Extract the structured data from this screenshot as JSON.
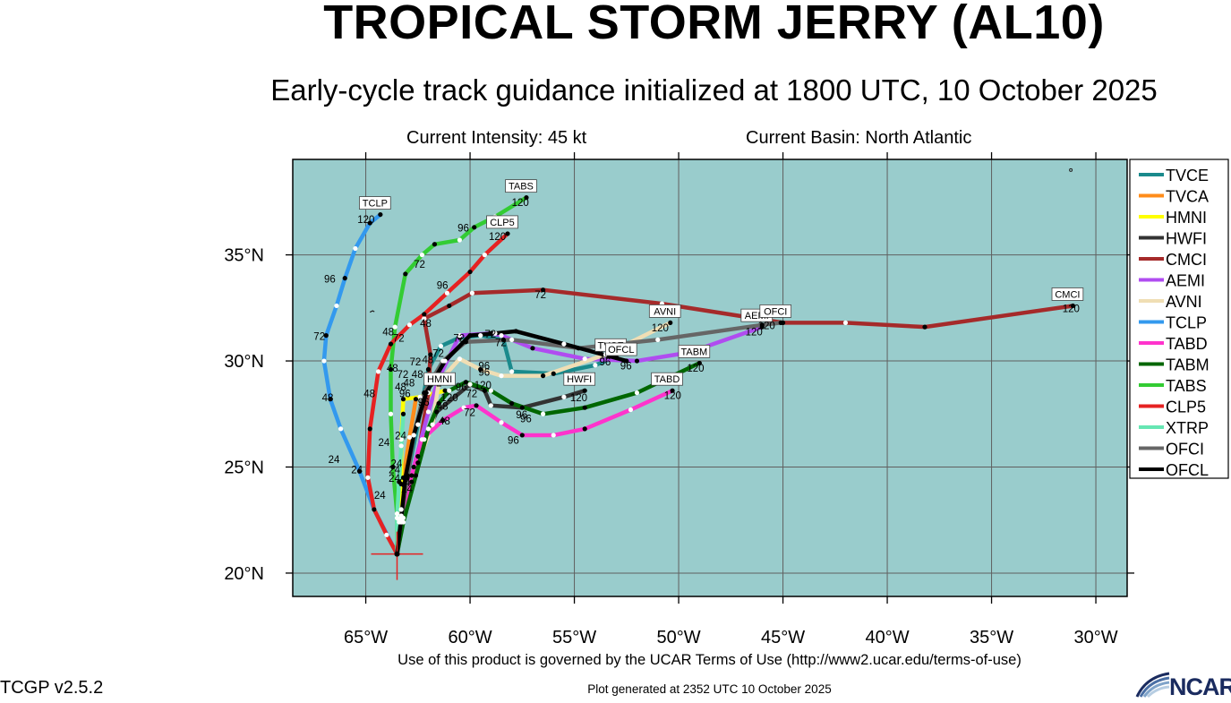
{
  "header": {
    "title": "TROPICAL STORM JERRY (AL10)",
    "subtitle": "Early-cycle track guidance initialized at 1800 UTC, 10 October 2025",
    "intensity_label": "Current Intensity: 45 kt",
    "basin_label": "Current Basin: North Atlantic"
  },
  "footer": {
    "terms": "Use of this product is governed by the UCAR Terms of Use (http://www2.ucar.edu/terms-of-use)",
    "version": "TCGP v2.5.2",
    "generated": "Plot generated at 2352 UTC   10 October 2025",
    "logo_text": "NCAR"
  },
  "chart_data": {
    "type": "map-track",
    "lon_range": [
      -68.5,
      -28.5
    ],
    "lat_range": [
      18.9,
      39.5
    ],
    "x_ticks": [
      {
        "value": -65,
        "label": "65°W"
      },
      {
        "value": -60,
        "label": "60°W"
      },
      {
        "value": -55,
        "label": "55°W"
      },
      {
        "value": -50,
        "label": "50°W"
      },
      {
        "value": -45,
        "label": "45°W"
      },
      {
        "value": -40,
        "label": "40°W"
      },
      {
        "value": -35,
        "label": "35°W"
      },
      {
        "value": -30,
        "label": "30°W"
      }
    ],
    "y_ticks": [
      {
        "value": 20,
        "label": "20°N"
      },
      {
        "value": 25,
        "label": "25°N"
      },
      {
        "value": 30,
        "label": "30°N"
      },
      {
        "value": 35,
        "label": "35°N"
      }
    ],
    "grid": true,
    "ocean_color": "#99cccc",
    "current_position": {
      "lon": -63.5,
      "lat": 20.9
    },
    "legend_position": "right",
    "series": [
      {
        "name": "TVCE",
        "color": "#1a8a8c",
        "points": [
          [
            -63.5,
            20.9
          ],
          [
            -63.3,
            22.7
          ],
          [
            -63.0,
            24.6
          ],
          [
            -62.5,
            27.0
          ],
          [
            -62.0,
            29.6
          ],
          [
            -61.4,
            30.7
          ],
          [
            -60.5,
            31.1
          ],
          [
            -59.5,
            31.2
          ],
          [
            -58.4,
            31.0
          ],
          [
            -58.0,
            29.5
          ],
          [
            -56.0,
            29.4
          ],
          [
            -54.0,
            29.8
          ],
          [
            -53.0,
            30.2
          ]
        ],
        "hour_labels": [],
        "end_label": "TVCE"
      },
      {
        "name": "TVCA",
        "color": "#ff8c1a",
        "points": [
          [
            -63.5,
            20.9
          ],
          [
            -63.4,
            22.5
          ],
          [
            -63.2,
            24.5
          ],
          [
            -62.9,
            26.4
          ],
          [
            -62.6,
            28.2
          ]
        ],
        "hour_labels": [],
        "end_label": null
      },
      {
        "name": "HMNI",
        "color": "#ffff00",
        "points": [
          [
            -63.5,
            20.9
          ],
          [
            -63.4,
            22.4
          ],
          [
            -63.3,
            24.2
          ],
          [
            -63.3,
            26.3
          ],
          [
            -63.2,
            28.2
          ],
          [
            -62.4,
            28.3
          ],
          [
            -61.2,
            28.6
          ]
        ],
        "hour_labels": [
          {
            "text": "24",
            "lon": -63.6,
            "lat": 26.3
          },
          {
            "text": "48",
            "lon": -63.6,
            "lat": 28.6
          },
          {
            "text": "96",
            "lon": -62.5,
            "lat": 27.9
          },
          {
            "text": "120",
            "lon": -61.4,
            "lat": 28.1
          }
        ],
        "end_label": "HMNI"
      },
      {
        "name": "HWFI",
        "color": "#333333",
        "points": [
          [
            -63.5,
            20.9
          ],
          [
            -63.3,
            22.4
          ],
          [
            -62.8,
            24.3
          ],
          [
            -62.2,
            26.3
          ],
          [
            -61.6,
            27.6
          ],
          [
            -60.0,
            28.9
          ],
          [
            -59.3,
            28.6
          ],
          [
            -59.0,
            27.9
          ],
          [
            -57.5,
            27.8
          ],
          [
            -55.5,
            28.3
          ],
          [
            -54.5,
            28.6
          ]
        ],
        "hour_labels": [
          {
            "text": "72",
            "lon": -60.2,
            "lat": 28.3
          },
          {
            "text": "96",
            "lon": -57.8,
            "lat": 27.3
          },
          {
            "text": "120",
            "lon": -55.2,
            "lat": 28.1
          }
        ],
        "end_label": "HWFI"
      },
      {
        "name": "CMCI",
        "color": "#a52a2a",
        "points": [
          [
            -63.5,
            20.9
          ],
          [
            -63.2,
            22.6
          ],
          [
            -62.5,
            25.5
          ],
          [
            -62.0,
            28.5
          ],
          [
            -61.9,
            30.3
          ],
          [
            -62.2,
            32.0
          ],
          [
            -61.0,
            32.6
          ],
          [
            -59.9,
            33.2
          ],
          [
            -56.5,
            33.35
          ],
          [
            -50.8,
            32.7
          ],
          [
            -45.0,
            31.8
          ],
          [
            -42.0,
            31.8
          ],
          [
            -38.2,
            31.6
          ],
          [
            -31.1,
            32.6
          ]
        ],
        "hour_labels": [
          {
            "text": "72",
            "lon": -56.9,
            "lat": 32.95
          },
          {
            "text": "120",
            "lon": -31.6,
            "lat": 32.3
          }
        ],
        "end_label": "CMCI"
      },
      {
        "name": "AEMI",
        "color": "#b04cf0",
        "points": [
          [
            -63.5,
            20.9
          ],
          [
            -63.3,
            22.6
          ],
          [
            -62.7,
            25.0
          ],
          [
            -62.0,
            27.6
          ],
          [
            -61.5,
            29.2
          ],
          [
            -60.5,
            31.2
          ],
          [
            -59.0,
            31.3
          ],
          [
            -58.5,
            31.2
          ],
          [
            -57.0,
            30.6
          ],
          [
            -54.5,
            30.1
          ],
          [
            -52.0,
            30.0
          ],
          [
            -49.5,
            30.4
          ],
          [
            -46.0,
            31.6
          ]
        ],
        "hour_labels": [
          {
            "text": "96",
            "lon": -52.8,
            "lat": 29.6
          },
          {
            "text": "120",
            "lon": -46.8,
            "lat": 31.2
          }
        ],
        "end_label": "AEMI"
      },
      {
        "name": "AVNI",
        "color": "#f0deb4",
        "points": [
          [
            -63.5,
            20.9
          ],
          [
            -63.3,
            23.0
          ],
          [
            -62.5,
            25.2
          ],
          [
            -61.8,
            27.0
          ],
          [
            -61.5,
            29.0
          ],
          [
            -60.5,
            30.1
          ],
          [
            -59.5,
            29.6
          ],
          [
            -58.5,
            29.3
          ],
          [
            -56.5,
            29.3
          ],
          [
            -53.5,
            30.3
          ],
          [
            -50.4,
            31.8
          ]
        ],
        "hour_labels": [
          {
            "text": "120",
            "lon": -51.3,
            "lat": 31.4
          }
        ],
        "end_label": "AVNI"
      },
      {
        "name": "TCLP",
        "color": "#3399ee",
        "points": [
          [
            -63.5,
            20.9
          ],
          [
            -64.6,
            23.0
          ],
          [
            -65.3,
            24.8
          ],
          [
            -66.2,
            26.8
          ],
          [
            -66.7,
            28.2
          ],
          [
            -67.0,
            30.0
          ],
          [
            -66.9,
            31.2
          ],
          [
            -66.4,
            32.6
          ],
          [
            -66.0,
            33.9
          ],
          [
            -65.5,
            35.3
          ],
          [
            -64.8,
            36.5
          ],
          [
            -64.3,
            36.9
          ]
        ],
        "hour_labels": [
          {
            "text": "24",
            "lon": -66.8,
            "lat": 25.2
          },
          {
            "text": "48",
            "lon": -67.1,
            "lat": 28.1
          },
          {
            "text": "72",
            "lon": -67.5,
            "lat": 31.0
          },
          {
            "text": "96",
            "lon": -67.0,
            "lat": 33.7
          },
          {
            "text": "120",
            "lon": -65.4,
            "lat": 36.5
          }
        ],
        "end_label": "TCLP"
      },
      {
        "name": "TABD",
        "color": "#ff33cc",
        "points": [
          [
            -63.5,
            20.9
          ],
          [
            -63.3,
            22.5
          ],
          [
            -62.8,
            24.6
          ],
          [
            -62.3,
            26.3
          ],
          [
            -61.3,
            27.2
          ],
          [
            -60.3,
            27.8
          ],
          [
            -59.7,
            27.9
          ],
          [
            -58.5,
            27.1
          ],
          [
            -57.5,
            26.5
          ],
          [
            -56.0,
            26.5
          ],
          [
            -54.5,
            26.8
          ],
          [
            -52.3,
            27.7
          ],
          [
            -50.3,
            28.6
          ]
        ],
        "hour_labels": [
          {
            "text": "48",
            "lon": -61.5,
            "lat": 27.0
          },
          {
            "text": "72",
            "lon": -60.3,
            "lat": 27.4
          },
          {
            "text": "96",
            "lon": -58.2,
            "lat": 26.1
          },
          {
            "text": "120",
            "lon": -50.7,
            "lat": 28.2
          }
        ],
        "end_label": "TABD"
      },
      {
        "name": "TABM",
        "color": "#006600",
        "points": [
          [
            -63.5,
            20.9
          ],
          [
            -63.2,
            22.4
          ],
          [
            -62.6,
            24.6
          ],
          [
            -62.0,
            26.8
          ],
          [
            -61.5,
            28.0
          ],
          [
            -61.0,
            28.6
          ],
          [
            -60.2,
            29.0
          ],
          [
            -59.0,
            28.6
          ],
          [
            -58.0,
            28.0
          ],
          [
            -56.5,
            27.5
          ],
          [
            -54.5,
            27.8
          ],
          [
            -52.0,
            28.5
          ],
          [
            -49.0,
            29.9
          ]
        ],
        "hour_labels": [
          {
            "text": "96",
            "lon": -57.6,
            "lat": 27.1
          },
          {
            "text": "120",
            "lon": -49.6,
            "lat": 29.5
          }
        ],
        "end_label": "TABM"
      },
      {
        "name": "TABS",
        "color": "#33cc33",
        "points": [
          [
            -63.5,
            20.9
          ],
          [
            -63.5,
            22.8
          ],
          [
            -63.7,
            25.0
          ],
          [
            -63.8,
            27.5
          ],
          [
            -63.8,
            29.6
          ],
          [
            -63.6,
            31.6
          ],
          [
            -63.1,
            34.1
          ],
          [
            -62.3,
            35.0
          ],
          [
            -61.7,
            35.5
          ],
          [
            -60.5,
            35.7
          ],
          [
            -59.8,
            36.3
          ],
          [
            -58.8,
            36.8
          ],
          [
            -57.3,
            37.7
          ]
        ],
        "hour_labels": [
          {
            "text": "24",
            "lon": -64.4,
            "lat": 26.0
          },
          {
            "text": "48",
            "lon": -64.0,
            "lat": 29.5
          },
          {
            "text": "72",
            "lon": -62.7,
            "lat": 34.4
          },
          {
            "text": "96",
            "lon": -60.6,
            "lat": 36.1
          },
          {
            "text": "120",
            "lon": -58.0,
            "lat": 37.3
          }
        ],
        "end_label": "TABS"
      },
      {
        "name": "CLP5",
        "color": "#e62222",
        "points": [
          [
            -63.5,
            20.9
          ],
          [
            -64.0,
            21.8
          ],
          [
            -64.6,
            23.0
          ],
          [
            -64.9,
            24.5
          ],
          [
            -64.8,
            26.8
          ],
          [
            -64.4,
            29.5
          ],
          [
            -63.8,
            30.8
          ],
          [
            -62.9,
            31.7
          ],
          [
            -62.2,
            32.2
          ],
          [
            -61.1,
            33.2
          ],
          [
            -60.0,
            34.2
          ],
          [
            -59.3,
            35.0
          ],
          [
            -58.2,
            36.0
          ]
        ],
        "hour_labels": [
          {
            "text": "24",
            "lon": -65.7,
            "lat": 24.7
          },
          {
            "text": "48",
            "lon": -65.1,
            "lat": 28.3
          },
          {
            "text": "48",
            "lon": -62.4,
            "lat": 31.6
          },
          {
            "text": "96",
            "lon": -61.6,
            "lat": 33.4
          },
          {
            "text": "120",
            "lon": -59.1,
            "lat": 35.7
          }
        ],
        "end_label": "CLP5"
      },
      {
        "name": "XTRP",
        "color": "#66e6b3",
        "points": [
          [
            -63.5,
            20.9
          ],
          [
            -63.5,
            22.6
          ],
          [
            -63.4,
            24.3
          ],
          [
            -63.3,
            26.0
          ],
          [
            -63.2,
            27.5
          ]
        ],
        "hour_labels": [],
        "end_label": null
      },
      {
        "name": "OFCI",
        "color": "#666666",
        "points": [
          [
            -63.5,
            20.9
          ],
          [
            -63.3,
            22.6
          ],
          [
            -63.0,
            24.5
          ],
          [
            -62.7,
            26.5
          ],
          [
            -62.2,
            28.5
          ],
          [
            -61.3,
            30.0
          ],
          [
            -60.2,
            30.9
          ],
          [
            -58.0,
            31.0
          ],
          [
            -54.8,
            30.6
          ],
          [
            -51.0,
            31.0
          ],
          [
            -46.0,
            31.7
          ],
          [
            -45.1,
            31.8
          ]
        ],
        "hour_labels": [
          {
            "text": "120",
            "lon": -46.2,
            "lat": 31.5
          }
        ],
        "end_label": "OFCI"
      },
      {
        "name": "OFCL",
        "color": "#000000",
        "points": [
          [
            -63.5,
            20.9
          ],
          [
            -63.3,
            22.6
          ],
          [
            -63.1,
            24.5
          ],
          [
            -62.7,
            26.5
          ],
          [
            -62.1,
            28.5
          ],
          [
            -61.2,
            30.0
          ],
          [
            -60.0,
            31.2
          ],
          [
            -58.8,
            31.3
          ],
          [
            -57.8,
            31.4
          ],
          [
            -55.5,
            30.8
          ],
          [
            -52.5,
            30.0
          ]
        ],
        "hour_labels": [
          {
            "text": "96",
            "lon": -53.8,
            "lat": 29.8
          },
          {
            "text": "120",
            "lon": -53.8,
            "lat": 30.1
          }
        ],
        "end_label": "OFCL"
      }
    ],
    "other_labels": [
      {
        "text": "24",
        "lon": -63.8,
        "lat": 25.0
      },
      {
        "text": "24",
        "lon": -63.9,
        "lat": 24.7
      },
      {
        "text": "24",
        "lon": -63.9,
        "lat": 24.3
      },
      {
        "text": "24",
        "lon": -64.6,
        "lat": 23.5
      },
      {
        "text": "24",
        "lon": -63.4,
        "lat": 24.1
      },
      {
        "text": "24",
        "lon": -63.3,
        "lat": 23.8
      },
      {
        "text": "48",
        "lon": -64.2,
        "lat": 31.2
      },
      {
        "text": "72",
        "lon": -63.7,
        "lat": 30.9
      },
      {
        "text": "72",
        "lon": -63.5,
        "lat": 29.2
      },
      {
        "text": "48",
        "lon": -62.8,
        "lat": 29.2
      },
      {
        "text": "48",
        "lon": -61.6,
        "lat": 27.7
      },
      {
        "text": "48",
        "lon": -62.3,
        "lat": 29.9
      },
      {
        "text": "72",
        "lon": -62.9,
        "lat": 29.8
      },
      {
        "text": "72",
        "lon": -61.8,
        "lat": 30.2
      },
      {
        "text": "72",
        "lon": -60.8,
        "lat": 30.9
      },
      {
        "text": "72",
        "lon": -59.3,
        "lat": 31.1
      },
      {
        "text": "72",
        "lon": -58.8,
        "lat": 30.7
      },
      {
        "text": "96",
        "lon": -59.6,
        "lat": 29.6
      },
      {
        "text": "96",
        "lon": -59.6,
        "lat": 29.3
      },
      {
        "text": "96",
        "lon": -63.4,
        "lat": 28.3
      },
      {
        "text": "48",
        "lon": -63.2,
        "lat": 28.8
      },
      {
        "text": "72",
        "lon": -61.9,
        "lat": 28.8
      },
      {
        "text": "96",
        "lon": -60.7,
        "lat": 28.6
      },
      {
        "text": "120",
        "lon": -59.8,
        "lat": 28.7
      }
    ]
  }
}
